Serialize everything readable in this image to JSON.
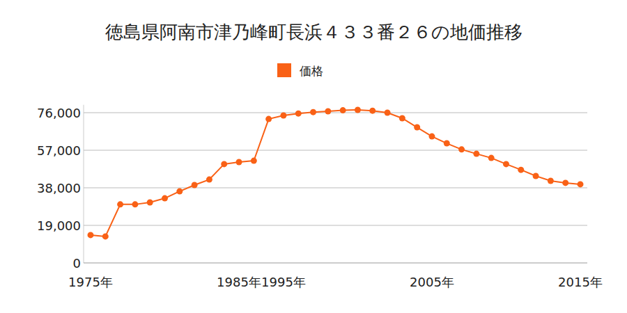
{
  "chart_data": {
    "type": "line",
    "title": "徳島県阿南市津乃峰町長浜４３３番２６の地価推移",
    "categories": [
      "1975年",
      null,
      null,
      null,
      null,
      null,
      null,
      null,
      null,
      null,
      "1985年",
      null,
      null,
      "1995年",
      null,
      null,
      null,
      null,
      null,
      null,
      null,
      null,
      null,
      "2005年",
      null,
      null,
      null,
      null,
      null,
      null,
      null,
      null,
      null,
      "2015年"
    ],
    "series": [
      {
        "name": "価格",
        "color": "#f96116",
        "marker": "circle",
        "values": [
          14100,
          13400,
          29600,
          29600,
          30600,
          32700,
          36200,
          39400,
          42200,
          50000,
          51000,
          51700,
          72800,
          74600,
          75600,
          76300,
          76700,
          77200,
          77400,
          77000,
          76000,
          73200,
          68600,
          64000,
          60500,
          57400,
          55200,
          53100,
          50000,
          47100,
          44000,
          41500,
          40500,
          39800
        ]
      }
    ],
    "ylim": [
      0,
      80000
    ],
    "yticks": [
      0,
      {
        "value": 19000,
        "label": "19,000"
      },
      {
        "value": 38000,
        "label": "38,000"
      },
      {
        "value": 57000,
        "label": "57,000"
      },
      {
        "value": 76000,
        "label": "76,000"
      }
    ],
    "grid": true,
    "legend": "top"
  }
}
